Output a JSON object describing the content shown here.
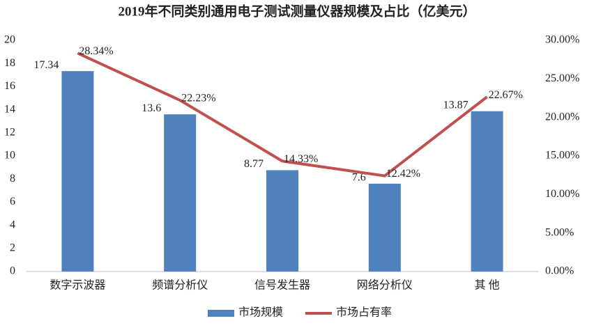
{
  "chart_data": {
    "type": "bar",
    "title": "2019年不同类别通用电子测试测量仪器规模及占比（亿美元）",
    "categories": [
      "数字示波器",
      "频谱分析仪",
      "信号发生器",
      "网络分析仪",
      "其 他"
    ],
    "series": [
      {
        "name": "市场规模",
        "type": "bar",
        "color": "#4f81bd",
        "values": [
          17.34,
          13.6,
          8.77,
          7.6,
          13.87
        ]
      },
      {
        "name": "市场占有率",
        "type": "line",
        "axis": "y2",
        "color": "#c0504d",
        "values": [
          28.34,
          22.23,
          14.33,
          12.42,
          22.67
        ],
        "value_labels": [
          "28.34%",
          "22.23%",
          "14.33%",
          "12.42%",
          "22.67%"
        ]
      }
    ],
    "ylim": [
      0,
      20
    ],
    "yticks": [
      0,
      2,
      4,
      6,
      8,
      10,
      12,
      14,
      16,
      18,
      20
    ],
    "y2lim": [
      0,
      30
    ],
    "y2ticks": [
      {
        "value": 0,
        "label": "0.00%"
      },
      {
        "value": 5,
        "label": "5.00%"
      },
      {
        "value": 10,
        "label": "10.00%"
      },
      {
        "value": 15,
        "label": "15.00%"
      },
      {
        "value": 20,
        "label": "20.00%"
      },
      {
        "value": 25,
        "label": "25.00%"
      },
      {
        "value": 30,
        "label": "30.00%"
      }
    ],
    "grid": false,
    "legend": "bottom"
  }
}
